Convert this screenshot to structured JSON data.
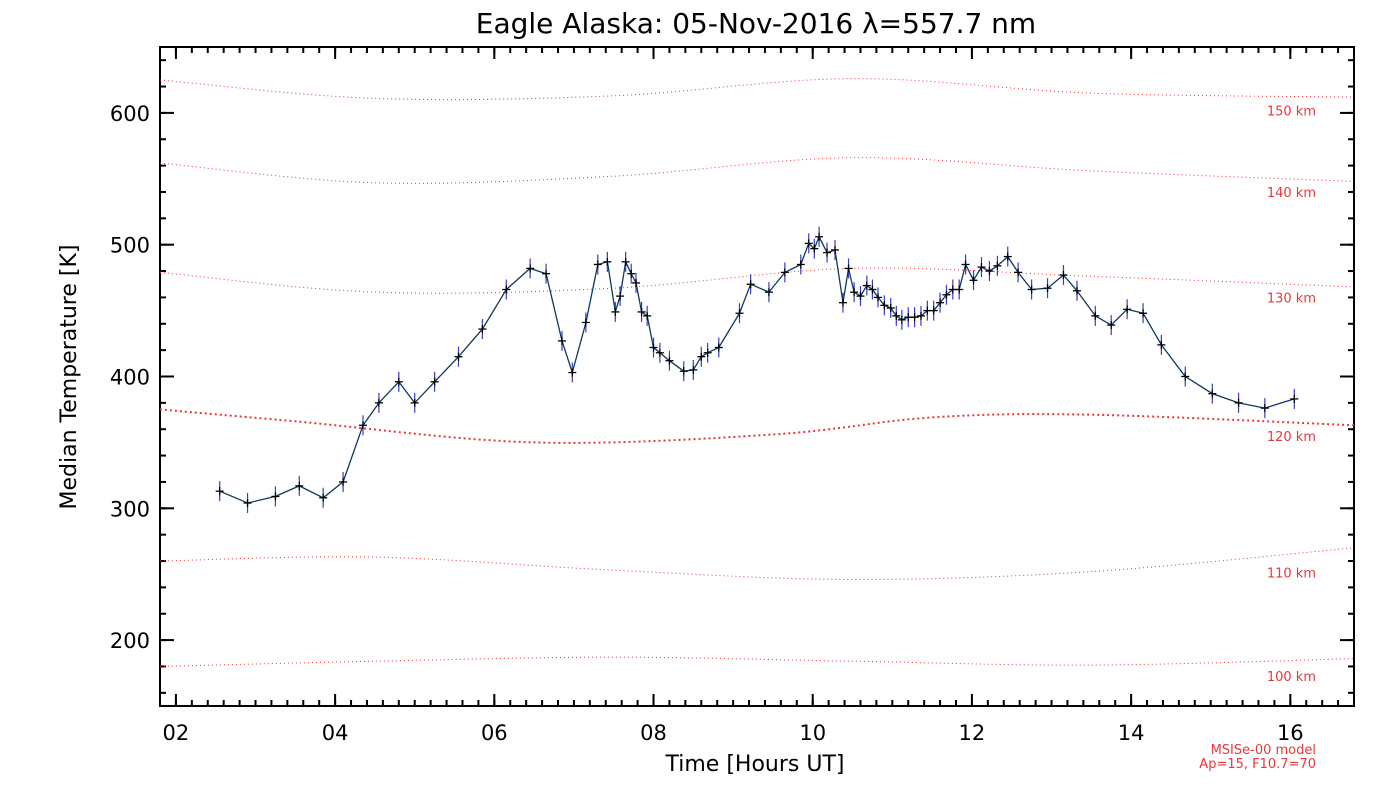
{
  "chart_data": {
    "type": "line",
    "title": "Eagle Alaska: 05-Nov-2016 λ=557.7 nm",
    "xlabel": "Time [Hours UT]",
    "ylabel": "Median Temperature [K]",
    "xlim": [
      1.8,
      16.8
    ],
    "ylim": [
      150,
      650
    ],
    "x_ticks": [
      2,
      4,
      6,
      8,
      10,
      12,
      14,
      16
    ],
    "x_tick_labels": [
      "02",
      "04",
      "06",
      "08",
      "10",
      "12",
      "14",
      "16"
    ],
    "y_ticks": [
      200,
      300,
      400,
      500,
      600
    ],
    "y_tick_labels": [
      "200",
      "300",
      "400",
      "500",
      "600"
    ],
    "series": [
      {
        "color": "#0b3a5c",
        "error_color": "#3a3acc",
        "x": [
          2.55,
          2.9,
          3.25,
          3.55,
          3.85,
          4.1,
          4.35,
          4.55,
          4.8,
          5.0,
          5.25,
          5.55,
          5.85,
          6.15,
          6.45,
          6.65,
          6.85,
          6.98,
          7.15,
          7.3,
          7.42,
          7.52,
          7.58,
          7.65,
          7.72,
          7.78,
          7.85,
          7.92,
          8.0,
          8.08,
          8.2,
          8.38,
          8.5,
          8.6,
          8.68,
          8.82,
          9.08,
          9.22,
          9.45,
          9.65,
          9.85,
          9.95,
          10.02,
          10.08,
          10.18,
          10.28,
          10.38,
          10.45,
          10.52,
          10.6,
          10.68,
          10.75,
          10.82,
          10.9,
          10.98,
          11.05,
          11.12,
          11.2,
          11.28,
          11.36,
          11.44,
          11.52,
          11.6,
          11.68,
          11.76,
          11.84,
          11.92,
          12.02,
          12.12,
          12.22,
          12.32,
          12.45,
          12.58,
          12.75,
          12.95,
          13.15,
          13.32,
          13.55,
          13.75,
          13.95,
          14.15,
          14.38,
          14.68,
          15.02,
          15.35,
          15.68,
          16.05
        ],
        "y": [
          313,
          304,
          309,
          317,
          308,
          320,
          363,
          380,
          396,
          380,
          396,
          415,
          436,
          466,
          482,
          478,
          427,
          403,
          441,
          485,
          487,
          449,
          461,
          487,
          478,
          471,
          449,
          446,
          422,
          418,
          412,
          404,
          405,
          415,
          418,
          422,
          448,
          470,
          464,
          479,
          485,
          501,
          497,
          506,
          494,
          496,
          456,
          482,
          464,
          461,
          469,
          466,
          460,
          454,
          452,
          446,
          443,
          445,
          445,
          446,
          450,
          450,
          456,
          462,
          466,
          466,
          485,
          473,
          483,
          480,
          484,
          491,
          479,
          466,
          467,
          477,
          465,
          446,
          439,
          451,
          448,
          424,
          400,
          387,
          380,
          376,
          383
        ]
      }
    ],
    "model_curves": [
      {
        "label": "100 km",
        "x": [
          1.8,
          4.5,
          7.5,
          10.5,
          13.5,
          16.8
        ],
        "y": [
          180,
          184,
          187,
          184,
          181,
          186
        ]
      },
      {
        "label": "110 km",
        "x": [
          1.8,
          4.5,
          7.5,
          10.5,
          13.5,
          16.8
        ],
        "y": [
          260,
          263,
          253,
          246,
          252,
          270
        ]
      },
      {
        "label": "120 km",
        "x": [
          1.8,
          3.5,
          6.5,
          9.5,
          11.5,
          13.5,
          16.8
        ],
        "y": [
          375,
          366,
          350,
          356,
          369,
          371,
          363
        ]
      },
      {
        "label": "130 km",
        "x": [
          1.8,
          4.5,
          7.5,
          10.5,
          13.5,
          16.8
        ],
        "y": [
          479,
          464,
          467,
          482,
          476,
          468
        ]
      },
      {
        "label": "140 km",
        "x": [
          1.8,
          4.5,
          7.5,
          10.5,
          13.5,
          16.8
        ],
        "y": [
          562,
          547,
          552,
          566,
          556,
          548
        ]
      },
      {
        "label": "150 km",
        "x": [
          1.8,
          4.5,
          7.5,
          10.5,
          13.5,
          16.8
        ],
        "y": [
          625,
          611,
          613,
          626,
          615,
          612
        ]
      }
    ],
    "model_color": "#e8383d",
    "model_note_line1": "MSISe-00 model",
    "model_note_line2": "Ap=15, F10.7=70"
  }
}
